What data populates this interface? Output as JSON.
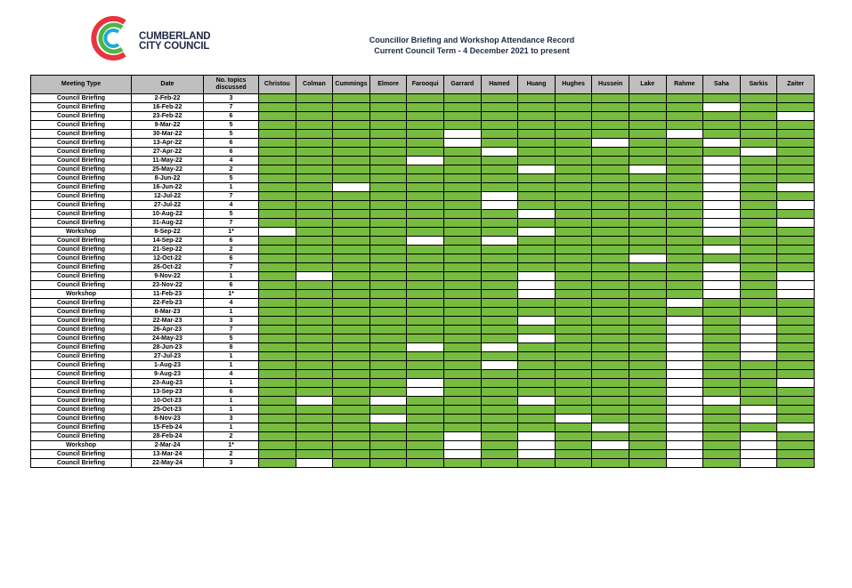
{
  "header": {
    "logo_line1": "CUMBERLAND",
    "logo_line2": "CITY COUNCIL",
    "title_line1": "Councillor Briefing and Workshop Attendance Record",
    "title_line2": "Current Council Term - 4 December 2021 to present"
  },
  "colors": {
    "present": "#77bb41",
    "absent": "#ffffff",
    "header_bg": "#bfbfbf"
  },
  "table": {
    "columns": {
      "meeting_type": "Meeting Type",
      "date": "Date",
      "topics": "No. topics discussed",
      "councillors": [
        "Christou",
        "Colman",
        "Cummings",
        "Elmore",
        "Farooqui",
        "Garrard",
        "Hamed",
        "Huang",
        "Hughes",
        "Hussein",
        "Lake",
        "Rahme",
        "Saha",
        "Sarkis",
        "Zaiter"
      ]
    },
    "rows": [
      {
        "type": "Council Briefing",
        "date": "2-Feb-22",
        "topics": "3",
        "att": "111111111111111"
      },
      {
        "type": "Council Briefing",
        "date": "16-Feb-22",
        "topics": "7",
        "att": "111111111111011"
      },
      {
        "type": "Council Briefing",
        "date": "23-Feb-22",
        "topics": "6",
        "att": "111111111111110"
      },
      {
        "type": "Council Briefing",
        "date": "9-Mar-22",
        "topics": "5",
        "att": "111111111111111"
      },
      {
        "type": "Council Briefing",
        "date": "30-Mar-22",
        "topics": "5",
        "att": "111110111110111"
      },
      {
        "type": "Council Briefing",
        "date": "13-Apr-22",
        "topics": "6",
        "att": "111110111011011"
      },
      {
        "type": "Council Briefing",
        "date": "27-Apr-22",
        "topics": "6",
        "att": "111111011111101"
      },
      {
        "type": "Council Briefing",
        "date": "11-May-22",
        "topics": "4",
        "att": "111101111111011"
      },
      {
        "type": "Council Briefing",
        "date": "25-May-22",
        "topics": "2",
        "att": "111111101101011"
      },
      {
        "type": "Council Briefing",
        "date": "8-Jun-22",
        "topics": "5",
        "att": "111111111111011"
      },
      {
        "type": "Council Briefing",
        "date": "16-Jun-22",
        "topics": "1",
        "att": "110111111111010"
      },
      {
        "type": "Council Briefing",
        "date": "12-Jul-22",
        "topics": "7",
        "att": "111111011111011"
      },
      {
        "type": "Council Briefing",
        "date": "27-Jul-22",
        "topics": "4",
        "att": "111111011111010"
      },
      {
        "type": "Council Briefing",
        "date": "10-Aug-22",
        "topics": "5",
        "att": "111111101111011"
      },
      {
        "type": "Council Briefing",
        "date": "31-Aug-22",
        "topics": "7",
        "att": "111111111111010"
      },
      {
        "type": "Workshop",
        "date": "8-Sep-22",
        "topics": "1*",
        "att": "011111101111011"
      },
      {
        "type": "Council Briefing",
        "date": "14-Sep-22",
        "topics": "6",
        "att": "111101011111111"
      },
      {
        "type": "Council Briefing",
        "date": "21-Sep-22",
        "topics": "2",
        "att": "111111111111011"
      },
      {
        "type": "Council Briefing",
        "date": "12-Oct-22",
        "topics": "6",
        "att": "111111111101111"
      },
      {
        "type": "Council Briefing",
        "date": "26-Oct-22",
        "topics": "7",
        "att": "111111111111011"
      },
      {
        "type": "Council Briefing",
        "date": "9-Nov-22",
        "topics": "1",
        "att": "101111101111010"
      },
      {
        "type": "Council Briefing",
        "date": "23-Nov-22",
        "topics": "6",
        "att": "111111101111010"
      },
      {
        "type": "Workshop",
        "date": "11-Feb-23",
        "topics": "1*",
        "att": "111111101111010"
      },
      {
        "type": "Council Briefing",
        "date": "22-Feb-23",
        "topics": "4",
        "att": "111111111110111"
      },
      {
        "type": "Council Briefing",
        "date": "8-Mar-23",
        "topics": "1",
        "att": "111111111111111"
      },
      {
        "type": "Council Briefing",
        "date": "22-Mar-23",
        "topics": "3",
        "att": "111111101110101"
      },
      {
        "type": "Council Briefing",
        "date": "26-Apr-23",
        "topics": "7",
        "att": "111111111110101"
      },
      {
        "type": "Council Briefing",
        "date": "24-May-23",
        "topics": "5",
        "att": "111111101110101"
      },
      {
        "type": "Council Briefing",
        "date": "28-Jun-23",
        "topics": "8",
        "att": "111101011110101"
      },
      {
        "type": "Council Briefing",
        "date": "27-Jul-23",
        "topics": "1",
        "att": "111111111110101"
      },
      {
        "type": "Council Briefing",
        "date": "1-Aug-23",
        "topics": "1",
        "att": "111111011110111"
      },
      {
        "type": "Council Briefing",
        "date": "9-Aug-23",
        "topics": "4",
        "att": "111111111110111"
      },
      {
        "type": "Council Briefing",
        "date": "23-Aug-23",
        "topics": "1",
        "att": "111101111110110"
      },
      {
        "type": "Council Briefing",
        "date": "13-Sep-23",
        "topics": "6",
        "att": "111101111110111"
      },
      {
        "type": "Council Briefing",
        "date": "10-Oct-23",
        "topics": "1",
        "att": "101011101110011"
      },
      {
        "type": "Council Briefing",
        "date": "25-Oct-23",
        "topics": "1",
        "att": "111111111110101"
      },
      {
        "type": "Council Briefing",
        "date": "8-Nov-23",
        "topics": "3",
        "att": "111011110110101"
      },
      {
        "type": "Council Briefing",
        "date": "15-Feb-24",
        "topics": "1",
        "att": "111111111010110"
      },
      {
        "type": "Council Briefing",
        "date": "28-Feb-24",
        "topics": "2",
        "att": "111110101110101"
      },
      {
        "type": "Workshop",
        "date": "2-Mar-24",
        "topics": "1*",
        "att": "111110101010101"
      },
      {
        "type": "Council Briefing",
        "date": "13-Mar-24",
        "topics": "2",
        "att": "111110101110101"
      },
      {
        "type": "Council Briefing",
        "date": "22-May-24",
        "topics": "3",
        "att": "101111111110101"
      }
    ]
  }
}
